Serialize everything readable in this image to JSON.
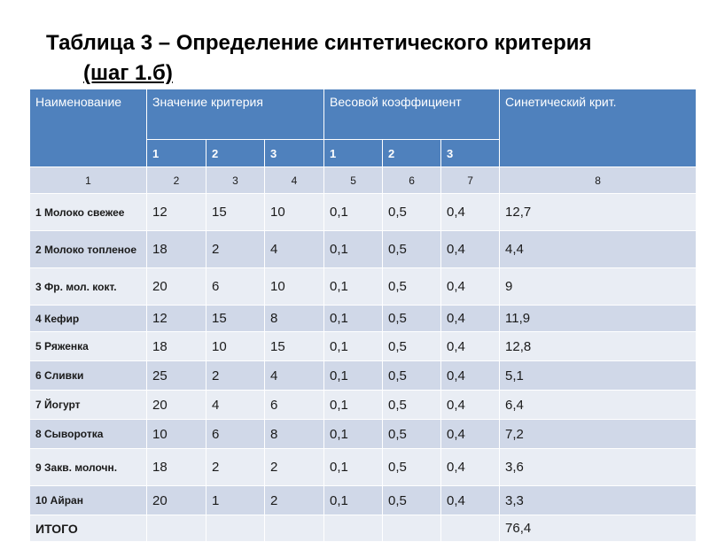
{
  "title": {
    "line1": "Таблица 3 – Определение синтетического критерия",
    "line2": "(шаг 1.б)"
  },
  "colors": {
    "header_bg": "#4f81bd",
    "row_dark": "#d0d8e8",
    "row_light": "#e9edf4"
  },
  "table": {
    "header": {
      "name": "Наименование",
      "criterion": "Значение критерия",
      "weight": "Весовой коэффициент",
      "synthetic": "Синетический крит.",
      "sub": [
        "1",
        "2",
        "3",
        "1",
        "2",
        "3"
      ]
    },
    "index_row": [
      "1",
      "2",
      "3",
      "4",
      "5",
      "6",
      "7",
      "8"
    ],
    "rows": [
      {
        "name": "1 Молоко свежее",
        "values": [
          "12",
          "15",
          "10",
          "0,1",
          "0,5",
          "0,4",
          "12,7"
        ]
      },
      {
        "name": "2 Молоко топленое",
        "values": [
          "18",
          "2",
          "4",
          "0,1",
          "0,5",
          "0,4",
          "4,4"
        ]
      },
      {
        "name": "3 Фр. мол. кокт.",
        "values": [
          "20",
          "6",
          "10",
          "0,1",
          "0,5",
          "0,4",
          "9"
        ]
      },
      {
        "name": "4 Кефир",
        "values": [
          "12",
          "15",
          "8",
          "0,1",
          "0,5",
          "0,4",
          "11,9"
        ]
      },
      {
        "name": "5 Ряженка",
        "values": [
          "18",
          "10",
          "15",
          "0,1",
          "0,5",
          "0,4",
          "12,8"
        ]
      },
      {
        "name": "6 Сливки",
        "values": [
          "25",
          "2",
          "4",
          "0,1",
          "0,5",
          "0,4",
          "5,1"
        ]
      },
      {
        "name": "7 Йогурт",
        "values": [
          "20",
          "4",
          "6",
          "0,1",
          "0,5",
          "0,4",
          "6,4"
        ]
      },
      {
        "name": "8 Сыворотка",
        "values": [
          "10",
          "6",
          "8",
          "0,1",
          "0,5",
          "0,4",
          "7,2"
        ]
      },
      {
        "name": "9 Закв. молочн.",
        "values": [
          "18",
          "2",
          "2",
          "0,1",
          "0,5",
          "0,4",
          "3,6"
        ]
      },
      {
        "name": "10 Айран",
        "values": [
          "20",
          "1",
          "2",
          "0,1",
          "0,5",
          "0,4",
          "3,3"
        ]
      }
    ],
    "total": {
      "name": "ИТОГО",
      "value": "76,4"
    }
  }
}
